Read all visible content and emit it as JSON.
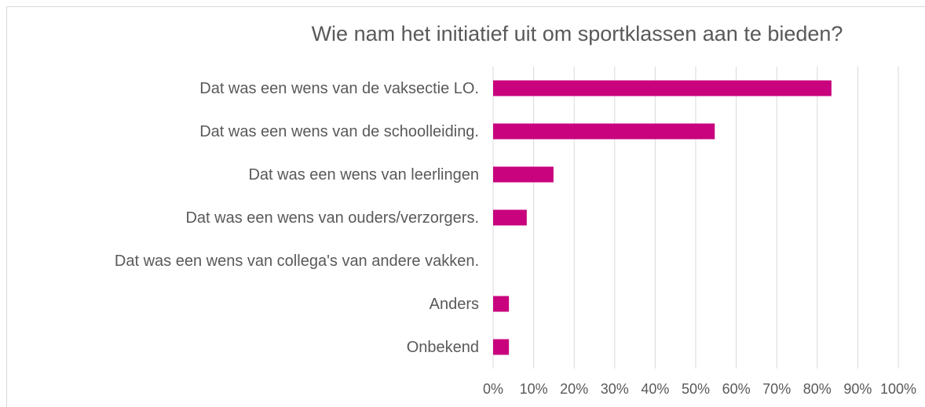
{
  "chart_data": {
    "type": "bar",
    "orientation": "horizontal",
    "title": "Wie nam het initiatief uit om sportklassen aan te bieden?",
    "categories": [
      "Dat was een wens van de vaksectie LO.",
      "Dat was een wens van de schoolleiding.",
      "Dat was een wens van leerlingen",
      "Dat was een wens van ouders/verzorgers.",
      "Dat was een wens van collega's van andere vakken.",
      "Anders",
      "Onbekend"
    ],
    "values": [
      83.5,
      54.7,
      14.9,
      8.3,
      0,
      3.9,
      3.9
    ],
    "color": "#c8037d",
    "xlim": [
      0,
      100
    ],
    "xticks": [
      {
        "value": 0,
        "label": "0%"
      },
      {
        "value": 10,
        "label": "10%"
      },
      {
        "value": 20,
        "label": "20%"
      },
      {
        "value": 30,
        "label": "30%"
      },
      {
        "value": 40,
        "label": "40%"
      },
      {
        "value": 50,
        "label": "50%"
      },
      {
        "value": 60,
        "label": "60%"
      },
      {
        "value": 70,
        "label": "70%"
      },
      {
        "value": 80,
        "label": "80%"
      },
      {
        "value": 90,
        "label": "90%"
      },
      {
        "value": 100,
        "label": "100%"
      }
    ],
    "grid": true
  }
}
